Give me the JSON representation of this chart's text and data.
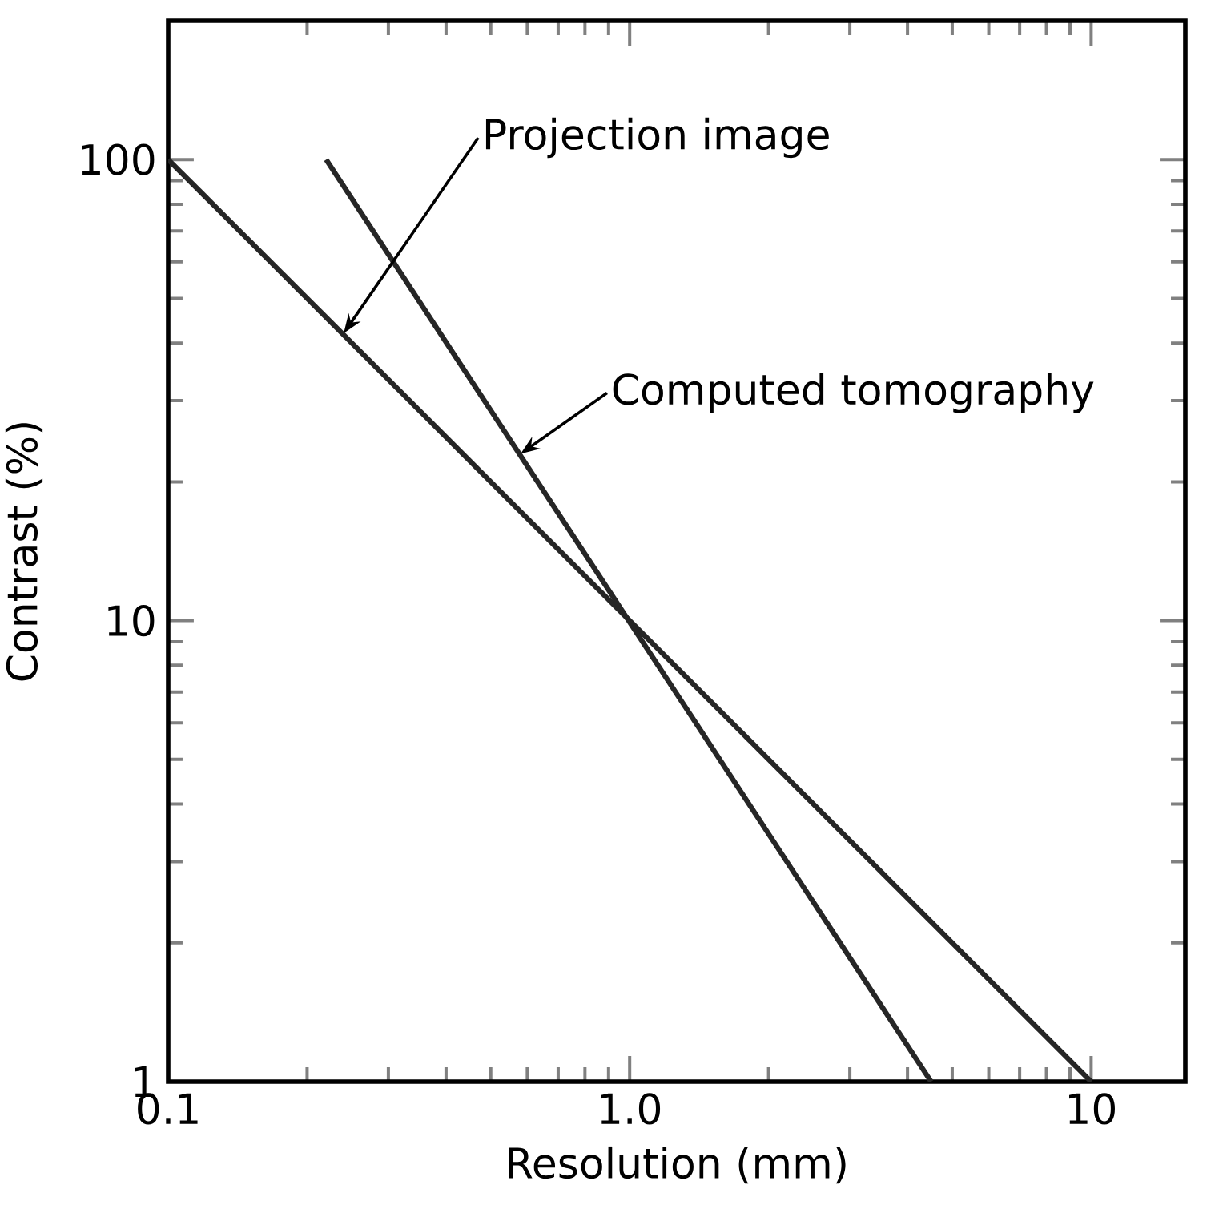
{
  "chart_data": {
    "type": "line",
    "xlabel": "Resolution (mm)",
    "ylabel": "Contrast (%)",
    "log": "xy",
    "xlim": [
      0.1,
      16
    ],
    "ylim": [
      1,
      200
    ],
    "xticks": [
      0.1,
      {
        "value": 1,
        "label": "1.0"
      },
      10
    ],
    "yticks": [
      1,
      10,
      100
    ],
    "series": [
      {
        "x": [
          0.1,
          10
        ],
        "values": [
          100,
          1
        ],
        "color": "#262626"
      },
      {
        "x": [
          0.22,
          4.5
        ],
        "values": [
          100,
          1
        ],
        "color": "#262626"
      }
    ],
    "annotations": [
      {
        "text": "Projection image",
        "x": 0.24,
        "y": 42
      },
      {
        "text": "Computed tomography",
        "x": 0.58,
        "y": 23
      }
    ]
  }
}
